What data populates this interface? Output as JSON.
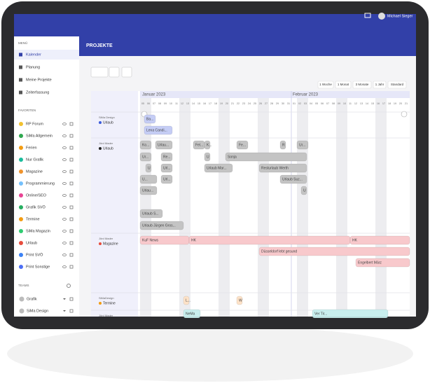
{
  "header": {
    "title": "PROJEKTE",
    "user": "Michael Sieger"
  },
  "sidebar": {
    "menu_title": "MENÜ",
    "menu": [
      "Kalender",
      "Planung",
      "Meine Projekte",
      "Zeiterfassung"
    ],
    "favorites_title": "FAVORITEN",
    "favorites": [
      {
        "label": "RP Forum",
        "color": "#f2c12e"
      },
      {
        "label": "SiMa Allgemein",
        "color": "#2fa84f"
      },
      {
        "label": "Ferien",
        "color": "#f39c12"
      },
      {
        "label": "Nur Grafik",
        "color": "#1abc9c"
      },
      {
        "label": "Magazine",
        "color": "#f0932b"
      },
      {
        "label": "Programmierung",
        "color": "#74c0fc"
      },
      {
        "label": "Online/SEO",
        "color": "#e84393"
      },
      {
        "label": "Grafik SVÖ",
        "color": "#27ae60"
      },
      {
        "label": "Termine",
        "color": "#f39c12"
      },
      {
        "label": "SiMa Magazin",
        "color": "#2ecc71"
      },
      {
        "label": "Urlaub",
        "color": "#e74c3c"
      },
      {
        "label": "Print SVÖ",
        "color": "#3b82f6"
      },
      {
        "label": "Print Sonstige",
        "color": "#4c6ef5"
      }
    ],
    "teams_title": "TEAMS",
    "teams": [
      "Grafik",
      "SiMa Design"
    ]
  },
  "toolbar": {
    "views": [
      "1 Woche",
      "1 Monat",
      "3 Monate",
      "1 Jahr",
      "Standard"
    ]
  },
  "timeline": {
    "months": [
      "Januar 2023",
      "Februar 2023"
    ],
    "days": [
      "05",
      "06",
      "07",
      "08",
      "09",
      "10",
      "11",
      "12",
      "13",
      "14",
      "15",
      "16",
      "17",
      "18",
      "19",
      "20",
      "21",
      "22",
      "23",
      "24",
      "25",
      "26",
      "27",
      "28",
      "29",
      "30",
      "31",
      "01",
      "02",
      "03",
      "04",
      "05",
      "06",
      "07",
      "08",
      "09",
      "10",
      "11",
      "12",
      "13",
      "14",
      "15",
      "16",
      "17",
      "18",
      "19",
      "20",
      "21"
    ],
    "rows": [
      {
        "person": "SiMa Design",
        "project": "Urlaub",
        "color": "#3b5bdb"
      },
      {
        "person": "Jörd Mader",
        "project": "Urlaub",
        "color": "#222222"
      },
      {
        "person": "Jörd Mader",
        "project": "Magazine",
        "color": "#e74c3c"
      },
      {
        "person": "SiMaDesign",
        "project": "Termine",
        "color": "#f39c12"
      },
      {
        "person": "Jörd Mader",
        "project": "",
        "color": "#ffffff"
      }
    ],
    "bars": [
      {
        "label": "Ba...",
        "color": "#c5cdf5"
      },
      {
        "label": "Lena Candi...",
        "color": "#c5cdf5"
      },
      {
        "label": "Ko...",
        "color": "#c4c4c4"
      },
      {
        "label": "Urlau...",
        "color": "#c4c4c4"
      },
      {
        "label": "Fel...",
        "color": "#c4c4c4"
      },
      {
        "label": "K...",
        "color": "#c4c4c4"
      },
      {
        "label": "Fe...",
        "color": "#c4c4c4"
      },
      {
        "label": "R",
        "color": "#c4c4c4"
      },
      {
        "label": "Ur...",
        "color": "#c4c4c4"
      },
      {
        "label": "Ur...",
        "color": "#c4c4c4"
      },
      {
        "label": "Re...",
        "color": "#c4c4c4"
      },
      {
        "label": "U",
        "color": "#c4c4c4"
      },
      {
        "label": "Sonja",
        "color": "#c4c4c4"
      },
      {
        "label": "U",
        "color": "#c4c4c4"
      },
      {
        "label": "Url...",
        "color": "#c4c4c4"
      },
      {
        "label": "Urlaub Mar...",
        "color": "#c4c4c4"
      },
      {
        "label": "Resturlaub Werth",
        "color": "#c4c4c4"
      },
      {
        "label": "U...",
        "color": "#c4c4c4"
      },
      {
        "label": "Url...",
        "color": "#c4c4c4"
      },
      {
        "label": "Urlaub Suz...",
        "color": "#c4c4c4"
      },
      {
        "label": "Urlau...",
        "color": "#c4c4c4"
      },
      {
        "label": "U",
        "color": "#c4c4c4"
      },
      {
        "label": "Urlaub S...",
        "color": "#c4c4c4"
      },
      {
        "label": "Urlaub Jürgen Gros...",
        "color": "#c4c4c4"
      },
      {
        "label": "KuF News",
        "color": "#f8c9cc"
      },
      {
        "label": "HK",
        "color": "#f8c9cc"
      },
      {
        "label": "HK",
        "color": "#f8c9cc"
      },
      {
        "label": "Düsseldorf lebt gesund",
        "color": "#f8c9cc"
      },
      {
        "label": "Engelbert März",
        "color": "#f8c9cc"
      },
      {
        "label": "L...",
        "color": "#fde2c8"
      },
      {
        "label": "W",
        "color": "#fde2c8"
      },
      {
        "label": "NeMa",
        "color": "#c8eeee"
      },
      {
        "label": "Ver Tir...",
        "color": "#c8eeee"
      }
    ]
  }
}
